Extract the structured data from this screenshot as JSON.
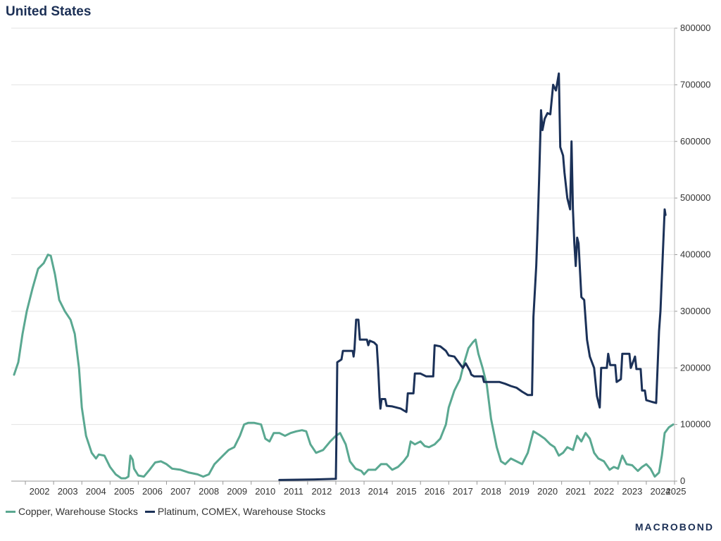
{
  "chart_data": {
    "type": "line",
    "title": "United States",
    "x_start": 2001.5,
    "x_end": 2025,
    "xticks": [
      "2002",
      "2003",
      "2004",
      "2005",
      "2006",
      "2007",
      "2008",
      "2009",
      "2010",
      "2011",
      "2012",
      "2013",
      "2014",
      "2015",
      "2016",
      "2017",
      "2018",
      "2019",
      "2020",
      "2021",
      "2022",
      "2023",
      "2024",
      "2025"
    ],
    "yticks": [
      "0",
      "100000",
      "200000",
      "300000",
      "400000",
      "500000",
      "600000",
      "700000",
      "800000"
    ],
    "ylim": [
      0,
      800000
    ],
    "grid": true,
    "legend_position": "bottom-left",
    "series": [
      {
        "name": "Copper, Warehouse Stocks",
        "color": "#5aa891",
        "points": [
          [
            2001.6,
            188000
          ],
          [
            2001.75,
            210000
          ],
          [
            2001.9,
            260000
          ],
          [
            2002.05,
            300000
          ],
          [
            2002.25,
            340000
          ],
          [
            2002.45,
            375000
          ],
          [
            2002.65,
            385000
          ],
          [
            2002.8,
            400000
          ],
          [
            2002.9,
            398000
          ],
          [
            2003.05,
            365000
          ],
          [
            2003.2,
            320000
          ],
          [
            2003.4,
            300000
          ],
          [
            2003.6,
            285000
          ],
          [
            2003.75,
            260000
          ],
          [
            2003.9,
            200000
          ],
          [
            2004.0,
            130000
          ],
          [
            2004.15,
            80000
          ],
          [
            2004.35,
            50000
          ],
          [
            2004.5,
            40000
          ],
          [
            2004.6,
            47000
          ],
          [
            2004.8,
            45000
          ],
          [
            2005.0,
            25000
          ],
          [
            2005.2,
            12000
          ],
          [
            2005.4,
            5000
          ],
          [
            2005.55,
            5000
          ],
          [
            2005.65,
            8000
          ],
          [
            2005.72,
            45000
          ],
          [
            2005.8,
            38000
          ],
          [
            2005.85,
            22000
          ],
          [
            2006.0,
            10000
          ],
          [
            2006.2,
            8000
          ],
          [
            2006.4,
            20000
          ],
          [
            2006.6,
            33000
          ],
          [
            2006.8,
            35000
          ],
          [
            2007.0,
            30000
          ],
          [
            2007.2,
            22000
          ],
          [
            2007.5,
            20000
          ],
          [
            2007.8,
            15000
          ],
          [
            2008.1,
            12000
          ],
          [
            2008.3,
            8000
          ],
          [
            2008.5,
            12000
          ],
          [
            2008.7,
            30000
          ],
          [
            2009.0,
            45000
          ],
          [
            2009.2,
            55000
          ],
          [
            2009.4,
            60000
          ],
          [
            2009.6,
            80000
          ],
          [
            2009.75,
            100000
          ],
          [
            2009.9,
            103000
          ],
          [
            2010.1,
            103000
          ],
          [
            2010.35,
            100000
          ],
          [
            2010.5,
            75000
          ],
          [
            2010.65,
            70000
          ],
          [
            2010.8,
            85000
          ],
          [
            2011.0,
            85000
          ],
          [
            2011.2,
            80000
          ],
          [
            2011.4,
            85000
          ],
          [
            2011.6,
            88000
          ],
          [
            2011.8,
            90000
          ],
          [
            2011.95,
            88000
          ],
          [
            2012.1,
            65000
          ],
          [
            2012.3,
            50000
          ],
          [
            2012.55,
            55000
          ],
          [
            2012.8,
            70000
          ],
          [
            2013.0,
            80000
          ],
          [
            2013.15,
            85000
          ],
          [
            2013.35,
            65000
          ],
          [
            2013.5,
            35000
          ],
          [
            2013.7,
            22000
          ],
          [
            2013.9,
            18000
          ],
          [
            2014.0,
            12000
          ],
          [
            2014.15,
            20000
          ],
          [
            2014.4,
            20000
          ],
          [
            2014.6,
            30000
          ],
          [
            2014.8,
            30000
          ],
          [
            2015.0,
            20000
          ],
          [
            2015.2,
            25000
          ],
          [
            2015.4,
            35000
          ],
          [
            2015.55,
            45000
          ],
          [
            2015.65,
            70000
          ],
          [
            2015.8,
            65000
          ],
          [
            2016.0,
            70000
          ],
          [
            2016.15,
            62000
          ],
          [
            2016.3,
            60000
          ],
          [
            2016.5,
            65000
          ],
          [
            2016.7,
            75000
          ],
          [
            2016.9,
            100000
          ],
          [
            2017.0,
            130000
          ],
          [
            2017.2,
            160000
          ],
          [
            2017.4,
            180000
          ],
          [
            2017.55,
            210000
          ],
          [
            2017.7,
            235000
          ],
          [
            2017.85,
            245000
          ],
          [
            2017.95,
            250000
          ],
          [
            2018.05,
            225000
          ],
          [
            2018.2,
            200000
          ],
          [
            2018.35,
            170000
          ],
          [
            2018.5,
            110000
          ],
          [
            2018.7,
            60000
          ],
          [
            2018.85,
            35000
          ],
          [
            2019.0,
            30000
          ],
          [
            2019.2,
            40000
          ],
          [
            2019.4,
            35000
          ],
          [
            2019.6,
            30000
          ],
          [
            2019.8,
            50000
          ],
          [
            2020.0,
            88000
          ],
          [
            2020.2,
            82000
          ],
          [
            2020.4,
            75000
          ],
          [
            2020.6,
            65000
          ],
          [
            2020.75,
            60000
          ],
          [
            2020.9,
            45000
          ],
          [
            2021.05,
            50000
          ],
          [
            2021.2,
            60000
          ],
          [
            2021.4,
            55000
          ],
          [
            2021.55,
            80000
          ],
          [
            2021.7,
            70000
          ],
          [
            2021.85,
            85000
          ],
          [
            2022.0,
            75000
          ],
          [
            2022.15,
            50000
          ],
          [
            2022.3,
            40000
          ],
          [
            2022.5,
            35000
          ],
          [
            2022.7,
            20000
          ],
          [
            2022.85,
            25000
          ],
          [
            2023.0,
            22000
          ],
          [
            2023.15,
            45000
          ],
          [
            2023.3,
            30000
          ],
          [
            2023.5,
            28000
          ],
          [
            2023.7,
            18000
          ],
          [
            2023.85,
            25000
          ],
          [
            2024.0,
            30000
          ],
          [
            2024.15,
            22000
          ],
          [
            2024.3,
            8000
          ],
          [
            2024.45,
            15000
          ],
          [
            2024.55,
            45000
          ],
          [
            2024.65,
            85000
          ],
          [
            2024.8,
            95000
          ],
          [
            2024.95,
            100000
          ]
        ]
      },
      {
        "name": "Platinum, COMEX, Warehouse Stocks",
        "color": "#1b3158",
        "points": [
          [
            2011.0,
            2000
          ],
          [
            2012.25,
            3000
          ],
          [
            2013.0,
            4000
          ],
          [
            2013.02,
            75000
          ],
          [
            2013.05,
            210000
          ],
          [
            2013.2,
            215000
          ],
          [
            2013.25,
            230000
          ],
          [
            2013.6,
            230000
          ],
          [
            2013.63,
            220000
          ],
          [
            2013.66,
            232000
          ],
          [
            2013.72,
            285000
          ],
          [
            2013.8,
            285000
          ],
          [
            2013.85,
            250000
          ],
          [
            2014.1,
            250000
          ],
          [
            2014.15,
            240000
          ],
          [
            2014.2,
            248000
          ],
          [
            2014.35,
            245000
          ],
          [
            2014.45,
            240000
          ],
          [
            2014.5,
            200000
          ],
          [
            2014.55,
            148000
          ],
          [
            2014.58,
            128000
          ],
          [
            2014.62,
            145000
          ],
          [
            2014.75,
            145000
          ],
          [
            2014.8,
            133000
          ],
          [
            2015.0,
            132000
          ],
          [
            2015.3,
            128000
          ],
          [
            2015.5,
            122000
          ],
          [
            2015.55,
            155000
          ],
          [
            2015.75,
            155000
          ],
          [
            2015.8,
            190000
          ],
          [
            2016.0,
            190000
          ],
          [
            2016.2,
            185000
          ],
          [
            2016.45,
            185000
          ],
          [
            2016.5,
            240000
          ],
          [
            2016.7,
            238000
          ],
          [
            2016.9,
            230000
          ],
          [
            2017.0,
            222000
          ],
          [
            2017.2,
            220000
          ],
          [
            2017.35,
            210000
          ],
          [
            2017.5,
            200000
          ],
          [
            2017.6,
            208000
          ],
          [
            2017.75,
            195000
          ],
          [
            2017.8,
            188000
          ],
          [
            2017.9,
            185000
          ],
          [
            2018.2,
            185000
          ],
          [
            2018.25,
            175000
          ],
          [
            2018.6,
            175000
          ],
          [
            2018.8,
            175000
          ],
          [
            2019.0,
            172000
          ],
          [
            2019.2,
            168000
          ],
          [
            2019.4,
            165000
          ],
          [
            2019.6,
            158000
          ],
          [
            2019.8,
            152000
          ],
          [
            2019.95,
            152000
          ],
          [
            2020.0,
            290000
          ],
          [
            2020.1,
            380000
          ],
          [
            2020.15,
            450000
          ],
          [
            2020.2,
            530000
          ],
          [
            2020.27,
            655000
          ],
          [
            2020.32,
            620000
          ],
          [
            2020.4,
            640000
          ],
          [
            2020.5,
            650000
          ],
          [
            2020.6,
            648000
          ],
          [
            2020.7,
            700000
          ],
          [
            2020.8,
            690000
          ],
          [
            2020.9,
            720000
          ],
          [
            2020.95,
            590000
          ],
          [
            2021.05,
            575000
          ],
          [
            2021.1,
            545000
          ],
          [
            2021.2,
            500000
          ],
          [
            2021.3,
            480000
          ],
          [
            2021.35,
            600000
          ],
          [
            2021.4,
            480000
          ],
          [
            2021.45,
            420000
          ],
          [
            2021.5,
            380000
          ],
          [
            2021.55,
            430000
          ],
          [
            2021.6,
            420000
          ],
          [
            2021.7,
            325000
          ],
          [
            2021.8,
            320000
          ],
          [
            2021.9,
            250000
          ],
          [
            2022.0,
            220000
          ],
          [
            2022.15,
            200000
          ],
          [
            2022.25,
            150000
          ],
          [
            2022.35,
            130000
          ],
          [
            2022.4,
            200000
          ],
          [
            2022.6,
            200000
          ],
          [
            2022.65,
            225000
          ],
          [
            2022.72,
            205000
          ],
          [
            2022.9,
            205000
          ],
          [
            2022.95,
            175000
          ],
          [
            2023.1,
            180000
          ],
          [
            2023.15,
            225000
          ],
          [
            2023.4,
            225000
          ],
          [
            2023.45,
            200000
          ],
          [
            2023.6,
            220000
          ],
          [
            2023.65,
            198000
          ],
          [
            2023.8,
            198000
          ],
          [
            2023.85,
            160000
          ],
          [
            2023.95,
            160000
          ],
          [
            2024.0,
            143000
          ],
          [
            2024.2,
            140000
          ],
          [
            2024.35,
            138000
          ],
          [
            2024.4,
            200000
          ],
          [
            2024.45,
            265000
          ],
          [
            2024.5,
            300000
          ],
          [
            2024.55,
            360000
          ],
          [
            2024.6,
            420000
          ],
          [
            2024.65,
            480000
          ],
          [
            2024.68,
            470000
          ]
        ]
      }
    ]
  },
  "legend": {
    "copper_label": "Copper, Warehouse Stocks",
    "platinum_label": "Platinum, COMEX, Warehouse Stocks"
  },
  "brand": {
    "logo_text": "MACROBOND"
  }
}
